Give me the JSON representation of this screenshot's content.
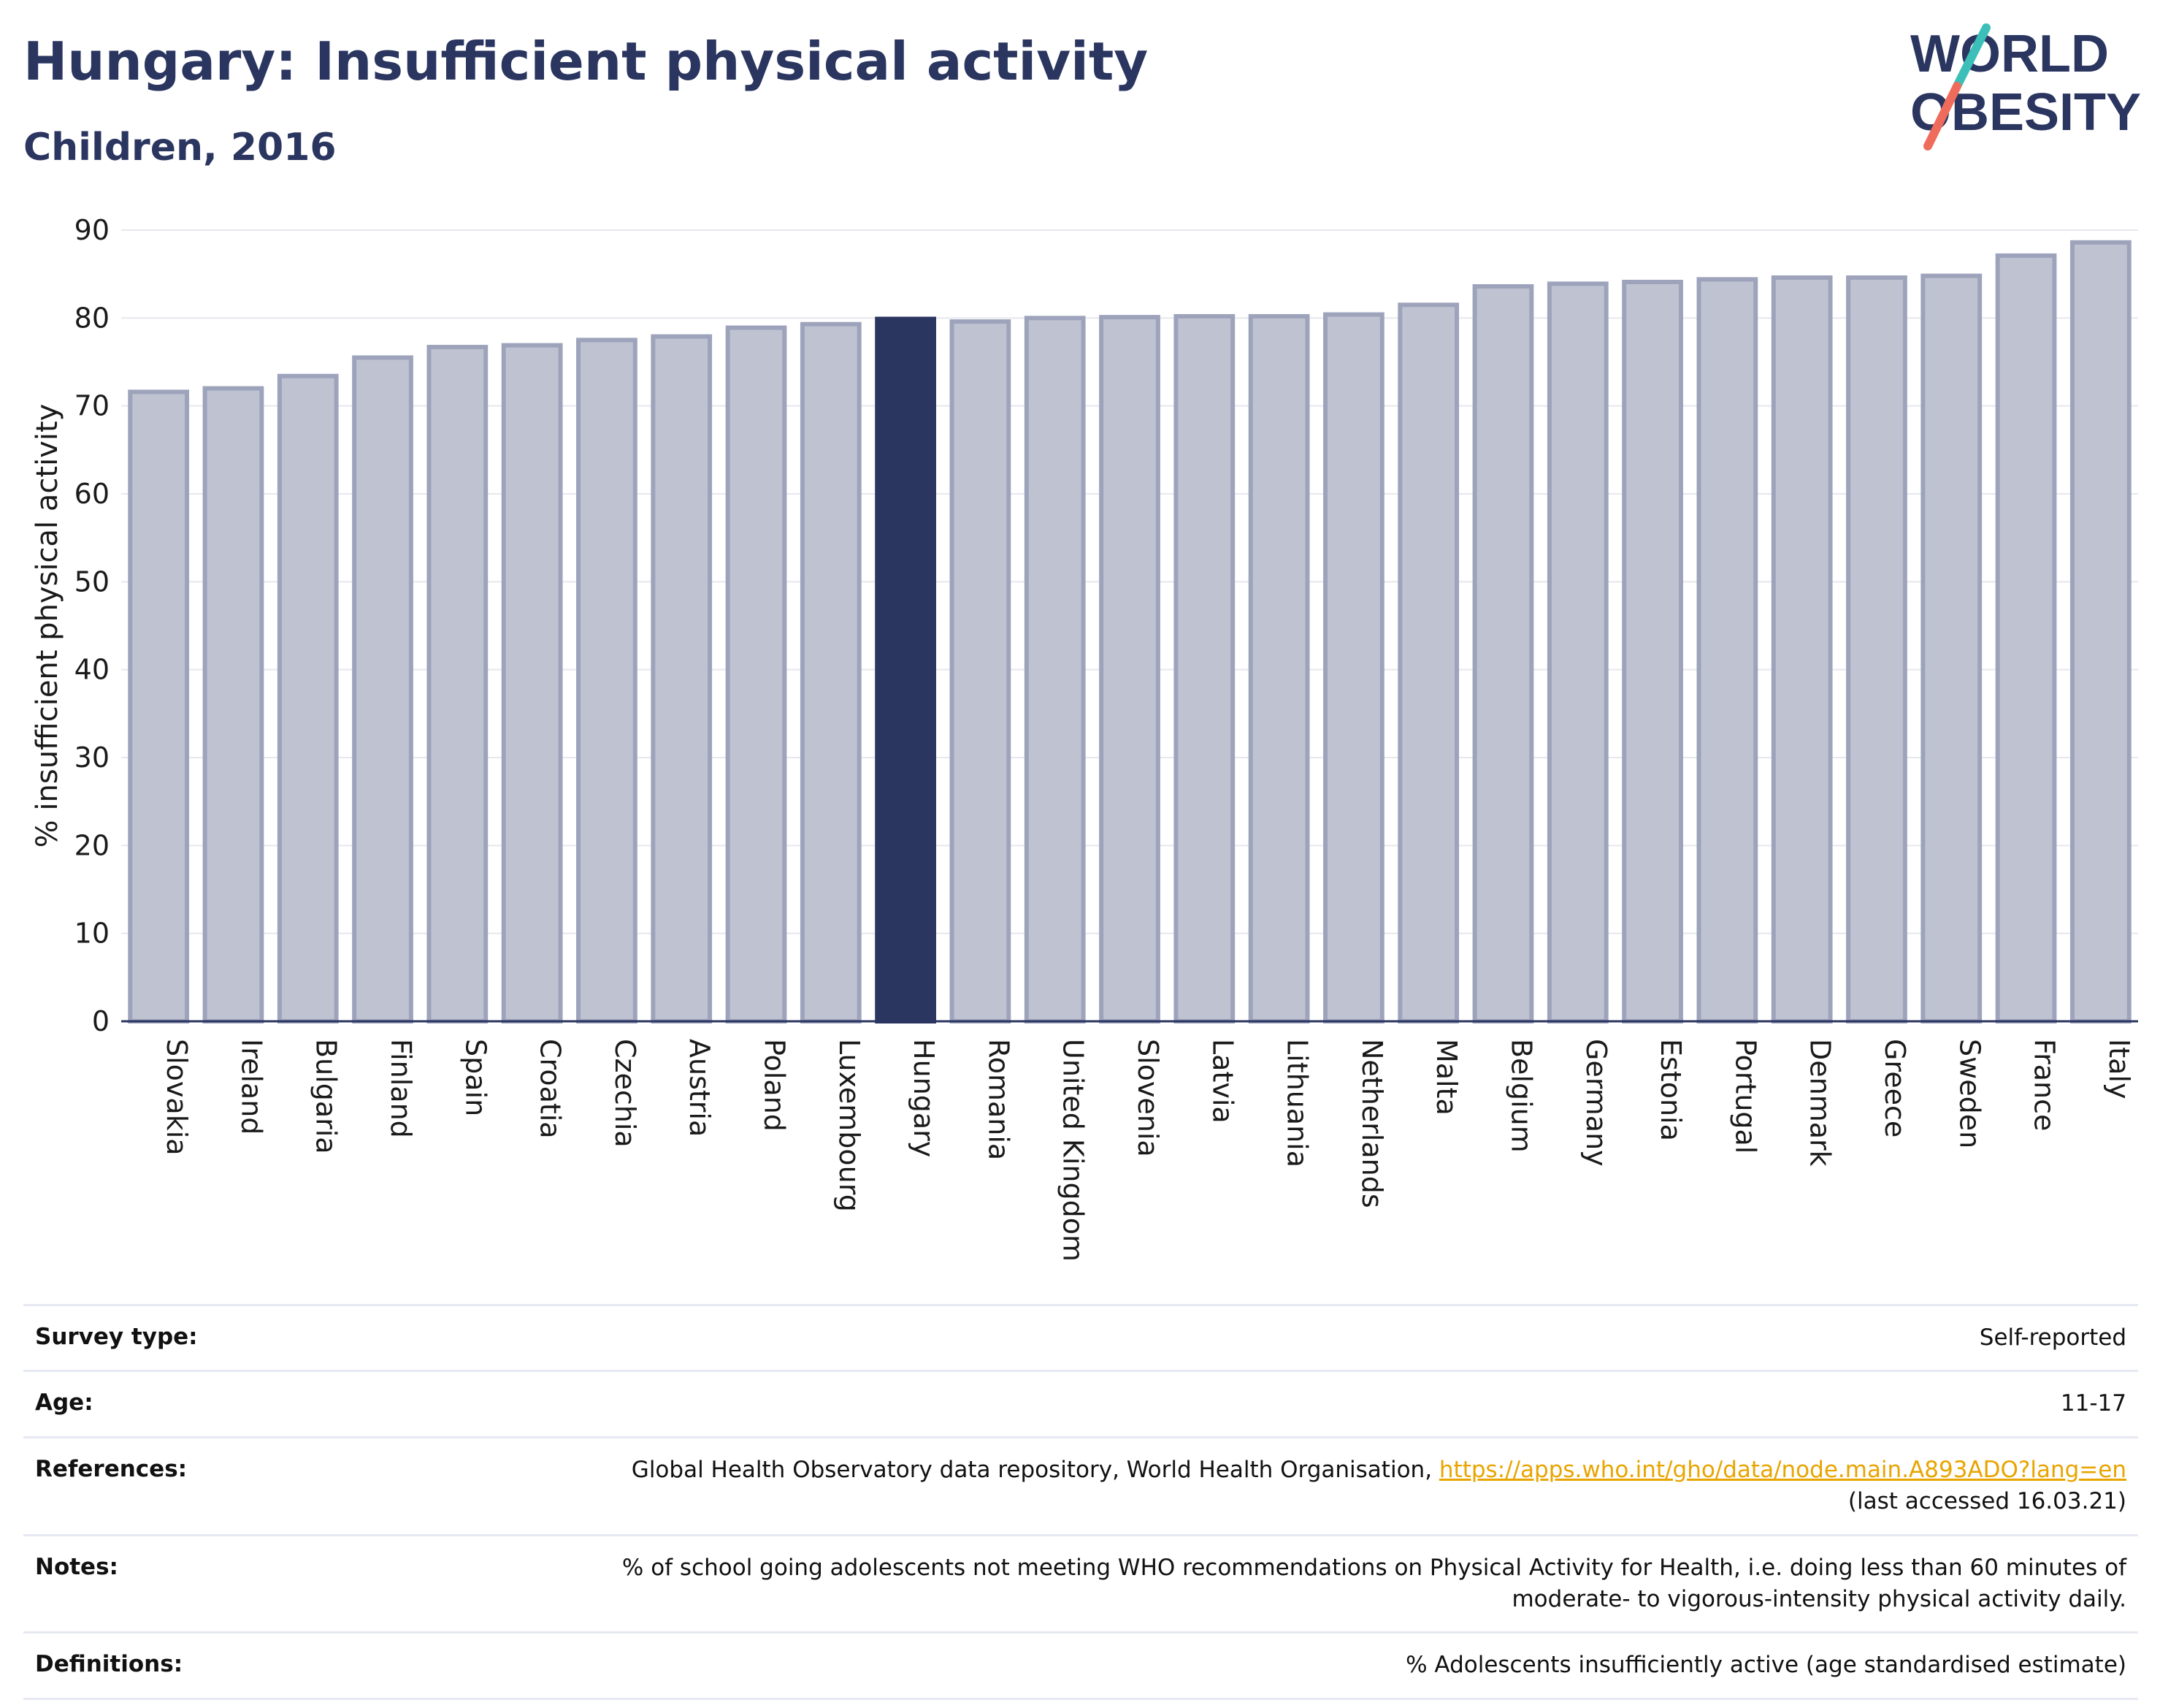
{
  "header": {
    "title": "Hungary: Insufficient physical activity",
    "subtitle": "Children, 2016"
  },
  "logo": {
    "line1": "WORLD",
    "line2": "OBESITY"
  },
  "colors": {
    "highlight": "#2a3560",
    "bar_fill": "#bfc3d1",
    "bar_stroke": "#9da3bb",
    "gridline": "#e6e8ee",
    "link": "#e8a500",
    "logo_teal": "#3bbfb8",
    "logo_coral": "#ef6b5b"
  },
  "chart_data": {
    "type": "bar",
    "ylabel": "% insufficient physical activity",
    "xlabel": "",
    "ylim": [
      0,
      90
    ],
    "yticks": [
      0,
      10,
      20,
      30,
      40,
      50,
      60,
      70,
      80,
      90
    ],
    "grid": true,
    "highlight": "Hungary",
    "categories": [
      "Slovakia",
      "Ireland",
      "Bulgaria",
      "Finland",
      "Spain",
      "Croatia",
      "Czechia",
      "Austria",
      "Poland",
      "Luxembourg",
      "Hungary",
      "Romania",
      "United Kingdom",
      "Slovenia",
      "Latvia",
      "Lithuania",
      "Netherlands",
      "Malta",
      "Belgium",
      "Germany",
      "Estonia",
      "Portugal",
      "Denmark",
      "Greece",
      "Sweden",
      "France",
      "Italy"
    ],
    "values": [
      71.6,
      72.0,
      73.4,
      75.5,
      76.7,
      76.9,
      77.5,
      77.9,
      78.9,
      79.3,
      79.9,
      79.6,
      80.0,
      80.1,
      80.2,
      80.2,
      80.4,
      81.5,
      83.6,
      83.9,
      84.1,
      84.4,
      84.6,
      84.6,
      84.8,
      87.1,
      88.6
    ]
  },
  "info": {
    "survey_type": {
      "label": "Survey type:",
      "value": "Self-reported"
    },
    "age": {
      "label": "Age:",
      "value": "11-17"
    },
    "references": {
      "label": "References:",
      "text": "Global Health Observatory data repository, World Health Organisation, ",
      "link": "https://apps.who.int/gho/data/node.main.A893ADO?lang=en",
      "suffix": "(last accessed 16.03.21)"
    },
    "notes": {
      "label": "Notes:",
      "line1": "% of school going adolescents not meeting WHO recommendations on Physical Activity for Health, i.e. doing less than 60 minutes of",
      "line2": "moderate- to vigorous-intensity physical activity daily."
    },
    "definitions": {
      "label": "Definitions:",
      "value": "% Adolescents insufficiently active (age standardised estimate)"
    }
  }
}
